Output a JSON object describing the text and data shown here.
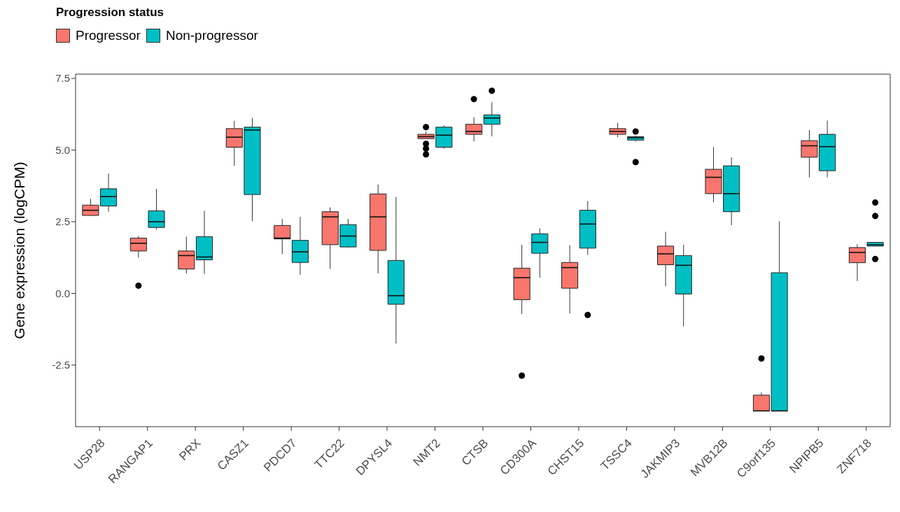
{
  "chart_data": {
    "type": "box",
    "ylabel": "Gene expression (logCPM)",
    "legend_title": "Progression status",
    "legend": "top left",
    "grid": false,
    "categories": [
      "USP28",
      "RANGAP1",
      "PRX",
      "CASZ1",
      "PDCD7",
      "TTC22",
      "DPYSL4",
      "NMT2",
      "CTSB",
      "CD300A",
      "CHST15",
      "TSSC4",
      "JAKMIP3",
      "MVB12B",
      "C9orf135",
      "NPIPB5",
      "ZNF718"
    ],
    "ylim": [
      -4.65,
      7.65
    ],
    "yticks": [
      {
        "value": -2.5,
        "label": "-2.5"
      },
      {
        "value": 0,
        "label": "0.0"
      },
      {
        "value": 2.5,
        "label": "2.5"
      },
      {
        "value": 5,
        "label": "5.0"
      },
      {
        "value": 7.5,
        "label": "7.5"
      }
    ],
    "series": [
      {
        "name": "Progressor",
        "color": "#f8766d",
        "boxes": [
          {
            "low": 2.7,
            "q1": 2.72,
            "median": 2.9,
            "q3": 3.08,
            "high": 3.3
          },
          {
            "low": 1.25,
            "q1": 1.48,
            "median": 1.75,
            "q3": 1.93,
            "high": 2.0,
            "outliers": [
              0.27
            ]
          },
          {
            "low": 0.7,
            "q1": 0.85,
            "median": 1.32,
            "q3": 1.48,
            "high": 1.98
          },
          {
            "low": 4.45,
            "q1": 5.1,
            "median": 5.45,
            "q3": 5.75,
            "high": 6.02
          },
          {
            "low": 1.37,
            "q1": 1.9,
            "median": 1.93,
            "q3": 2.37,
            "high": 2.6
          },
          {
            "low": 0.85,
            "q1": 1.7,
            "median": 2.67,
            "q3": 2.85,
            "high": 3.0
          },
          {
            "low": 0.7,
            "q1": 1.5,
            "median": 2.67,
            "q3": 3.47,
            "high": 3.8
          },
          {
            "low": 5.4,
            "q1": 5.4,
            "median": 5.47,
            "q3": 5.55,
            "high": 5.65,
            "outliers": [
              5.8,
              5.22,
              5.05,
              4.85
            ]
          },
          {
            "low": 5.3,
            "q1": 5.55,
            "median": 5.65,
            "q3": 5.9,
            "high": 6.15,
            "outliers": [
              6.78
            ]
          },
          {
            "low": -0.72,
            "q1": -0.22,
            "median": 0.55,
            "q3": 0.88,
            "high": 1.7,
            "outliers": [
              -2.87
            ]
          },
          {
            "low": -0.7,
            "q1": 0.18,
            "median": 0.9,
            "q3": 1.08,
            "high": 1.68
          },
          {
            "low": 5.45,
            "q1": 5.55,
            "median": 5.65,
            "q3": 5.75,
            "high": 5.95
          },
          {
            "low": 0.25,
            "q1": 1.0,
            "median": 1.38,
            "q3": 1.65,
            "high": 2.15
          },
          {
            "low": 3.18,
            "q1": 3.48,
            "median": 4.05,
            "q3": 4.33,
            "high": 5.1
          },
          {
            "low": -4.1,
            "q1": -4.1,
            "median": -4.1,
            "q3": -3.55,
            "high": -3.45,
            "outliers": [
              -2.27
            ]
          },
          {
            "low": 4.05,
            "q1": 4.75,
            "median": 5.15,
            "q3": 5.33,
            "high": 5.7
          },
          {
            "low": 0.43,
            "q1": 1.07,
            "median": 1.43,
            "q3": 1.6,
            "high": 1.72
          }
        ]
      },
      {
        "name": "Non-progressor",
        "color": "#00bfc4",
        "boxes": [
          {
            "low": 2.85,
            "q1": 3.05,
            "median": 3.38,
            "q3": 3.65,
            "high": 4.18
          },
          {
            "low": 2.22,
            "q1": 2.3,
            "median": 2.5,
            "q3": 2.88,
            "high": 3.65
          },
          {
            "low": 0.68,
            "q1": 1.17,
            "median": 1.27,
            "q3": 1.98,
            "high": 2.88
          },
          {
            "low": 2.52,
            "q1": 3.45,
            "median": 5.7,
            "q3": 5.8,
            "high": 6.12
          },
          {
            "low": 0.65,
            "q1": 1.08,
            "median": 1.45,
            "q3": 1.85,
            "high": 2.67
          },
          {
            "low": 1.6,
            "q1": 1.62,
            "median": 2.0,
            "q3": 2.4,
            "high": 2.6
          },
          {
            "low": -1.75,
            "q1": -0.38,
            "median": -0.08,
            "q3": 1.15,
            "high": 3.37
          },
          {
            "low": 5.05,
            "q1": 5.1,
            "median": 5.52,
            "q3": 5.8,
            "high": 5.86
          },
          {
            "low": 5.48,
            "q1": 5.9,
            "median": 6.12,
            "q3": 6.23,
            "high": 6.67,
            "outliers": [
              7.07
            ]
          },
          {
            "low": 0.55,
            "q1": 1.4,
            "median": 1.78,
            "q3": 2.08,
            "high": 2.27
          },
          {
            "low": 1.35,
            "q1": 1.58,
            "median": 2.42,
            "q3": 2.9,
            "high": 3.22,
            "outliers": [
              -0.75
            ]
          },
          {
            "low": 5.3,
            "q1": 5.35,
            "median": 5.43,
            "q3": 5.47,
            "high": 5.5,
            "outliers": [
              5.65,
              4.58
            ]
          },
          {
            "low": -1.15,
            "q1": -0.02,
            "median": 0.98,
            "q3": 1.32,
            "high": 1.7
          },
          {
            "low": 2.38,
            "q1": 2.85,
            "median": 3.48,
            "q3": 4.45,
            "high": 4.75
          },
          {
            "low": -4.1,
            "q1": -4.1,
            "median": -4.1,
            "q3": 0.72,
            "high": 2.52
          },
          {
            "low": 4.05,
            "q1": 4.28,
            "median": 5.12,
            "q3": 5.55,
            "high": 6.03
          },
          {
            "low": 1.65,
            "q1": 1.65,
            "median": 1.7,
            "q3": 1.78,
            "high": 1.78,
            "outliers": [
              3.17,
              2.7,
              1.2
            ]
          }
        ]
      }
    ]
  }
}
